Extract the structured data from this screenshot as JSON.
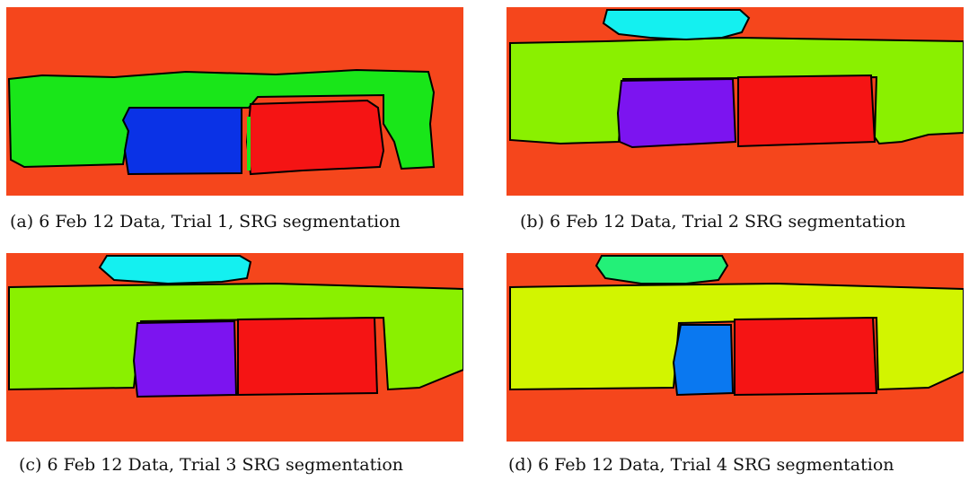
{
  "figure": {
    "panels": [
      {
        "id": "a",
        "caption": "(a) 6 Feb 12 Data, Trial 1, SRG segmentation"
      },
      {
        "id": "b",
        "caption": "(b) 6 Feb 12 Data, Trial 2 SRG segmentation"
      },
      {
        "id": "c",
        "caption": "(c) 6 Feb 12 Data, Trial 3 SRG segmentation"
      },
      {
        "id": "d",
        "caption": "(d) 6 Feb 12 Data, Trial 4 SRG segmentation"
      }
    ],
    "colors": {
      "background_red": "#f5461c",
      "green": "#19e619",
      "blue": "#0a32e6",
      "red": "#f51414",
      "lime": "#8af000",
      "purple": "#7c14f0",
      "cyan": "#14f0f0",
      "yellow_green": "#d2f500",
      "sky_blue": "#0a78f0",
      "spring_green": "#23f078",
      "outline": "#000000"
    }
  }
}
